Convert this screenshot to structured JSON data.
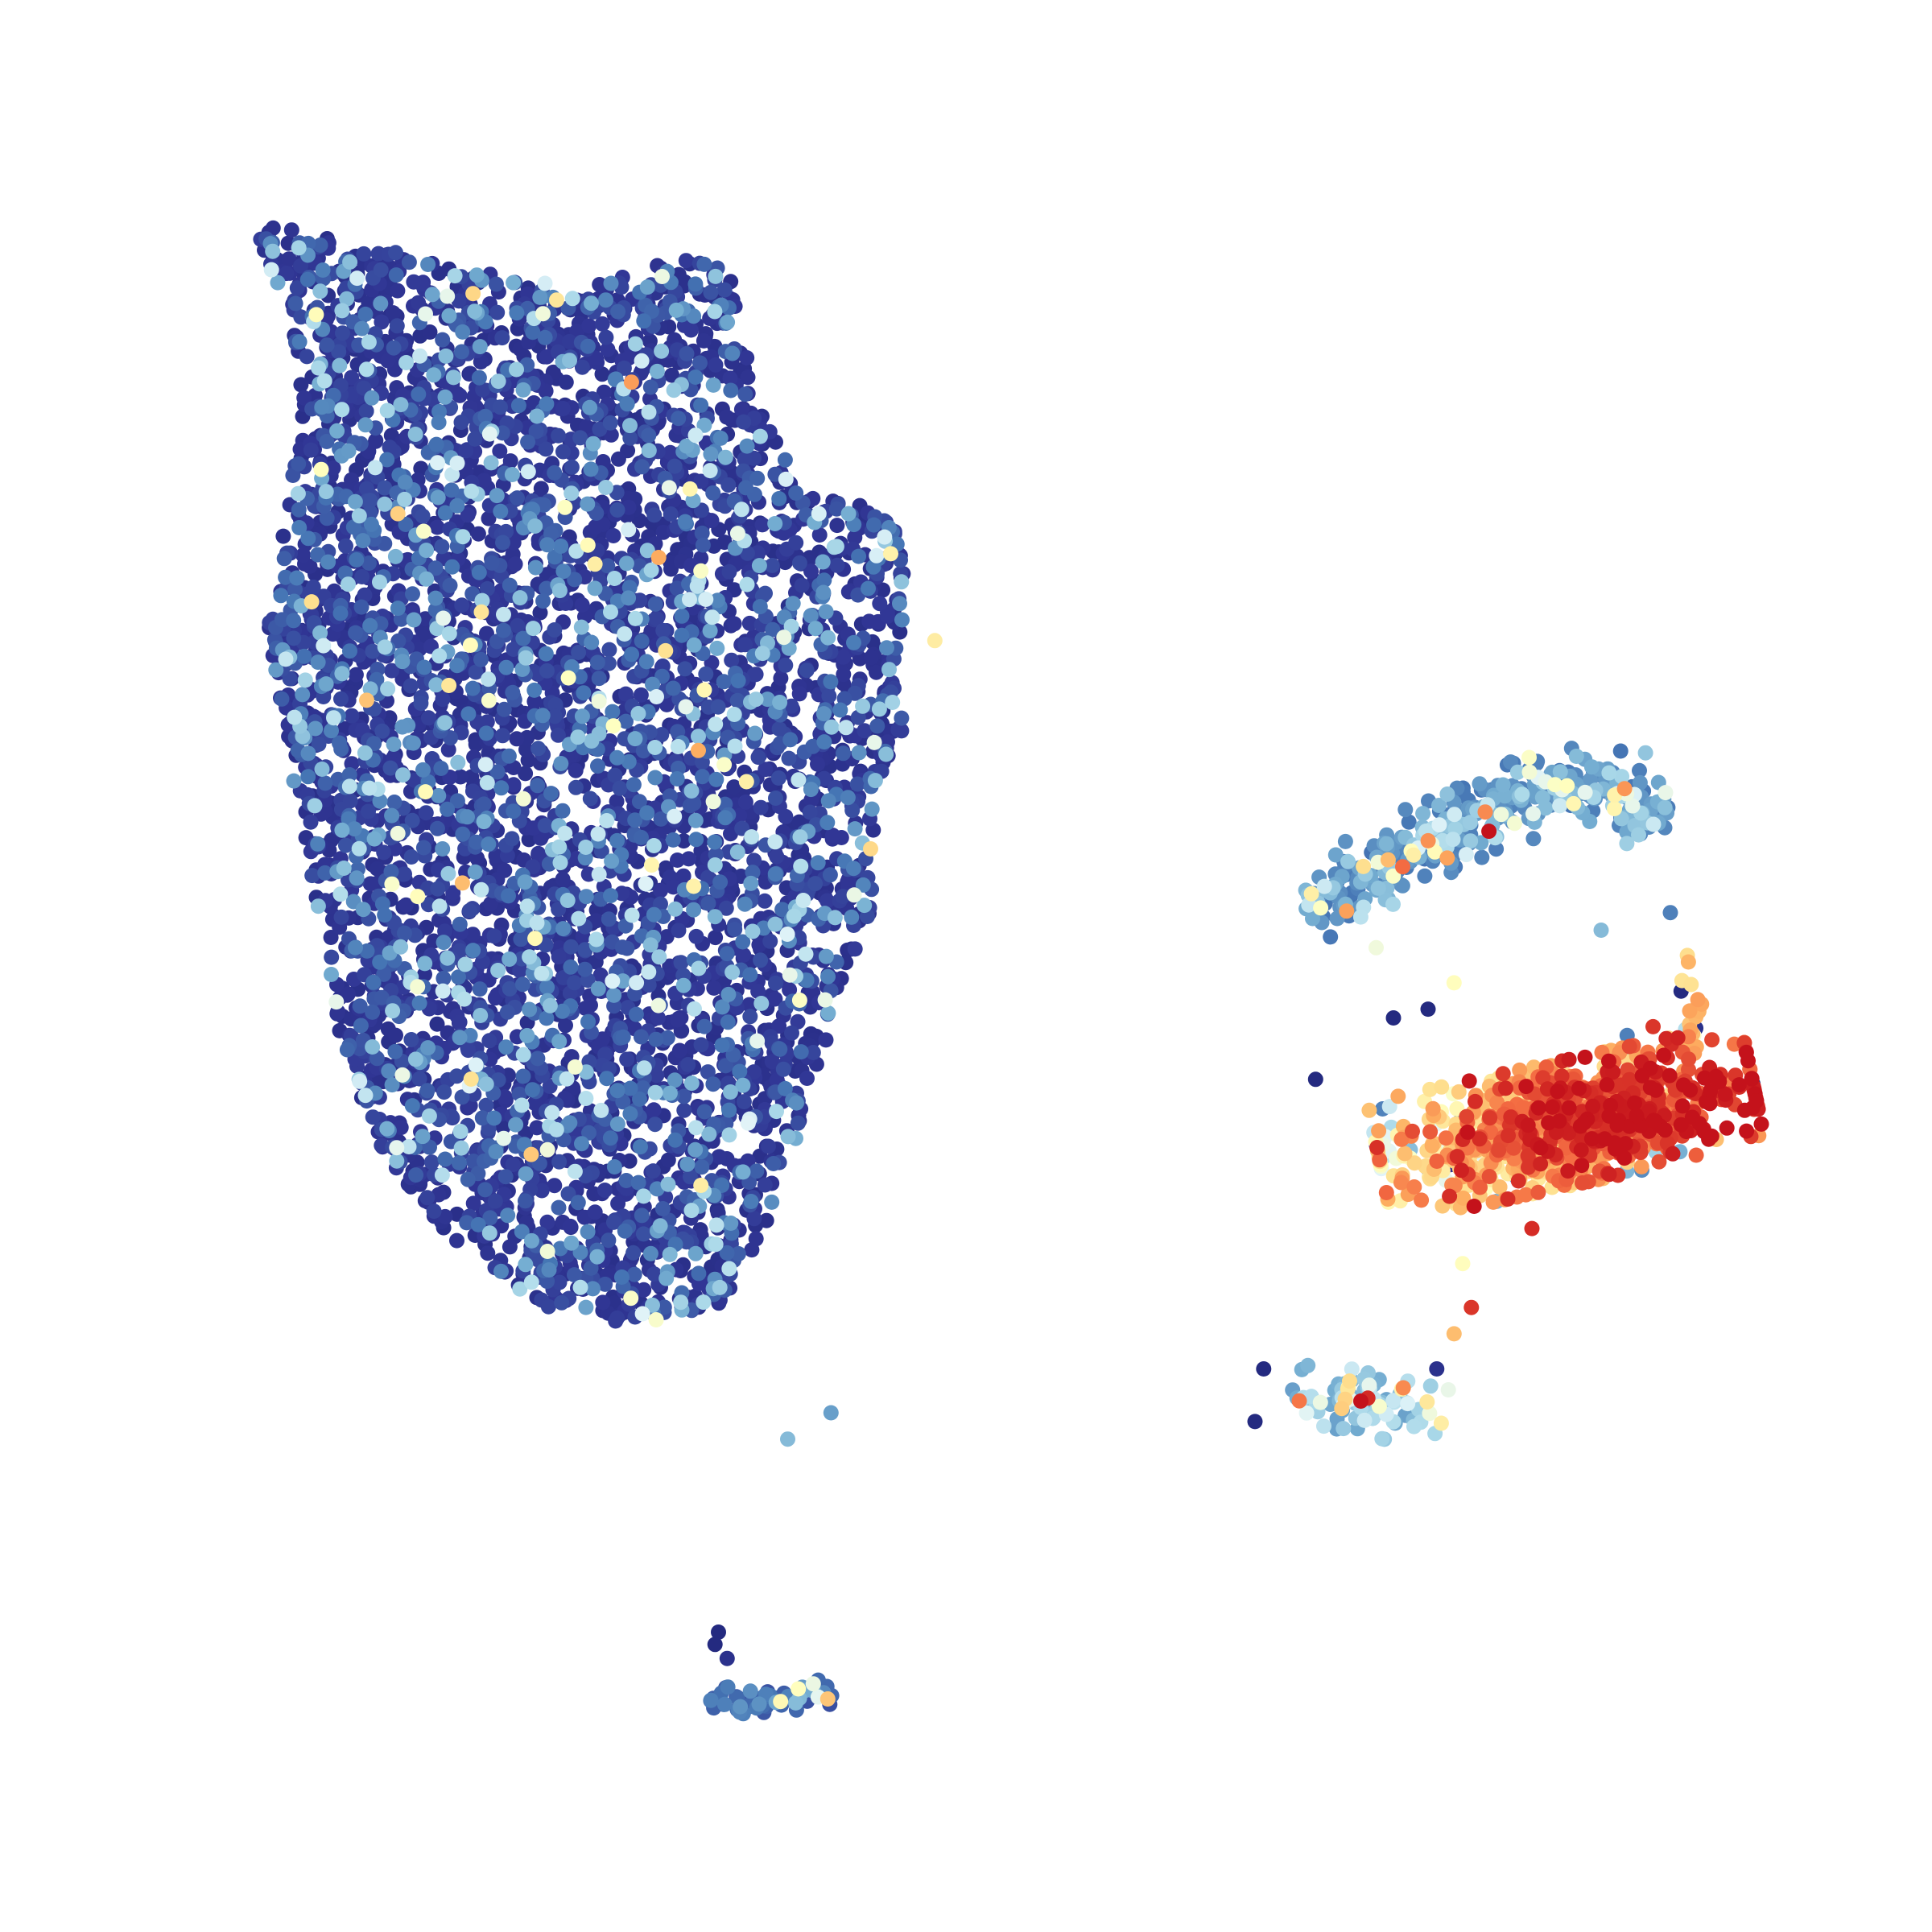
{
  "chart_data": {
    "type": "scatter",
    "title": "",
    "xlabel": "",
    "ylabel": "",
    "axes_visible": false,
    "grid": false,
    "legend": "none",
    "colormap": {
      "name": "RdYlBu_r",
      "stops": [
        "#242a80",
        "#313695",
        "#4575b4",
        "#74add1",
        "#abd9e9",
        "#e0f3f8",
        "#ffffbf",
        "#fee090",
        "#fdae61",
        "#f46d43",
        "#d73027",
        "#c4121b"
      ],
      "range": [
        0,
        1
      ]
    },
    "xlim": [
      0,
      100
    ],
    "ylim": [
      0,
      100
    ],
    "clusters": [
      {
        "id": "large-left-cluster",
        "n_points": 5200,
        "value_mean": 0.04,
        "value_spread": 0.1,
        "shape": "polygon",
        "polygon": [
          [
            8,
            93
          ],
          [
            12,
            92
          ],
          [
            17,
            91
          ],
          [
            22,
            90
          ],
          [
            27,
            89
          ],
          [
            33,
            91
          ],
          [
            36,
            90
          ],
          [
            37,
            83
          ],
          [
            40,
            78
          ],
          [
            45,
            76
          ],
          [
            46,
            72
          ],
          [
            45,
            67
          ],
          [
            46,
            64
          ],
          [
            44,
            60
          ],
          [
            44,
            54
          ],
          [
            42,
            49
          ],
          [
            40,
            42
          ],
          [
            38,
            36
          ],
          [
            35,
            31
          ],
          [
            30,
            30
          ],
          [
            25,
            31
          ],
          [
            19,
            35
          ],
          [
            15,
            41
          ],
          [
            13,
            47
          ],
          [
            12,
            53
          ],
          [
            11,
            58
          ],
          [
            10,
            63
          ],
          [
            9,
            70
          ],
          [
            10,
            76
          ],
          [
            11,
            82
          ],
          [
            10,
            88
          ]
        ]
      },
      {
        "id": "right-arc-cluster",
        "n_points": 420,
        "value_mean": 0.18,
        "value_spread": 0.12,
        "shape": "arc",
        "polyline": [
          [
            69,
            54
          ],
          [
            72,
            55
          ],
          [
            75,
            57
          ],
          [
            78,
            58.5
          ],
          [
            81,
            60
          ],
          [
            84,
            61
          ],
          [
            86,
            61
          ],
          [
            88,
            60
          ],
          [
            89.5,
            58.5
          ]
        ],
        "width": 1.8
      },
      {
        "id": "right-hot-cluster",
        "n_points": 1100,
        "value_mean": 0.82,
        "value_spread": 0.12,
        "gradient_x": [
          70,
          95
        ],
        "gradient_values": [
          0.55,
          0.97
        ],
        "shape": "ellipse",
        "center": [
          84,
          41.5
        ],
        "radii": [
          10,
          3.2
        ],
        "rotation_deg": 12
      },
      {
        "id": "right-tail",
        "n_points": 25,
        "value_mean": 0.75,
        "value_spread": 0.2,
        "shape": "polyline",
        "polyline": [
          [
            90.5,
            51
          ],
          [
            91,
            49
          ],
          [
            91.5,
            47
          ],
          [
            91,
            45.5
          ]
        ],
        "width": 0.6
      },
      {
        "id": "small-right-cluster",
        "n_points": 90,
        "value_mean": 0.25,
        "value_spread": 0.18,
        "shape": "ellipse",
        "center": [
          72.5,
          25.5
        ],
        "radii": [
          4,
          1.6
        ],
        "rotation_deg": -12
      },
      {
        "id": "small-bottom-cluster",
        "n_points": 70,
        "value_mean": 0.12,
        "value_spread": 0.1,
        "shape": "polyline",
        "polyline": [
          [
            34.5,
            9
          ],
          [
            35,
            8.6
          ],
          [
            36,
            8.3
          ],
          [
            38,
            8.6
          ],
          [
            40,
            9.2
          ],
          [
            41.5,
            9.4
          ]
        ],
        "width": 0.7
      }
    ],
    "sparse_points": [
      {
        "x": 35,
        "y": 12.5,
        "value": 0.0
      },
      {
        "x": 34.8,
        "y": 11.8,
        "value": 0.0
      },
      {
        "x": 35.5,
        "y": 11,
        "value": 0.05
      },
      {
        "x": 47.5,
        "y": 69,
        "value": 0.6
      },
      {
        "x": 44.5,
        "y": 65,
        "value": 0.0
      },
      {
        "x": 39,
        "y": 23.5,
        "value": 0.3
      },
      {
        "x": 41.5,
        "y": 25,
        "value": 0.25
      },
      {
        "x": 66,
        "y": 24.5,
        "value": 0.0
      },
      {
        "x": 66.5,
        "y": 27.5,
        "value": 0.0
      },
      {
        "x": 69.5,
        "y": 44,
        "value": 0.0
      },
      {
        "x": 76.5,
        "y": 27.5,
        "value": 0.05
      },
      {
        "x": 77.5,
        "y": 29.5,
        "value": 0.7
      },
      {
        "x": 78.5,
        "y": 31,
        "value": 0.9
      },
      {
        "x": 78,
        "y": 33.5,
        "value": 0.55
      },
      {
        "x": 82,
        "y": 35.5,
        "value": 0.92
      },
      {
        "x": 74,
        "y": 47.5,
        "value": 0.0
      },
      {
        "x": 76,
        "y": 48,
        "value": 0.0
      },
      {
        "x": 73,
        "y": 51.5,
        "value": 0.5
      },
      {
        "x": 77.5,
        "y": 49.5,
        "value": 0.55
      },
      {
        "x": 86,
        "y": 52.5,
        "value": 0.3
      },
      {
        "x": 90,
        "y": 53.5,
        "value": 0.2
      },
      {
        "x": 89,
        "y": 47,
        "value": 0.9
      },
      {
        "x": 87.5,
        "y": 46.5,
        "value": 0.2
      }
    ]
  }
}
